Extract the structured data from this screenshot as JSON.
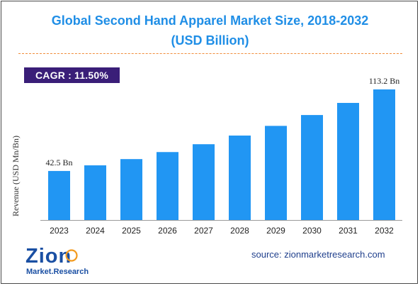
{
  "title": {
    "line1": "Global Second Hand Apparel Market Size, 2018-2032",
    "line2": "(USD Billion)"
  },
  "cagr_label": "CAGR : 11.50%",
  "source": "source: zionmarketresearch.com",
  "logo": {
    "word": "Zion",
    "sub": "Market.Research"
  },
  "colors": {
    "title": "#1f8ee6",
    "bar": "#2196f3",
    "cagr_bg": "#3a1e78",
    "divider": "#f08d3a",
    "logo_blue": "#1a4fa3",
    "logo_orange": "#f39a1e"
  },
  "chart_data": {
    "type": "bar",
    "title": "Global Second Hand Apparel Market Size, 2018-2032 (USD Billion)",
    "xlabel": "",
    "ylabel": "Revenue (USD Mn/Bn)",
    "categories": [
      "2023",
      "2024",
      "2025",
      "2026",
      "2027",
      "2028",
      "2029",
      "2030",
      "2031",
      "2032"
    ],
    "values": [
      42.5,
      47.4,
      52.8,
      58.9,
      65.7,
      73.2,
      81.6,
      91.0,
      101.5,
      113.2
    ],
    "data_labels": [
      {
        "index": 0,
        "text": "42.5 Bn"
      },
      {
        "index": 9,
        "text": "113.2 Bn"
      }
    ],
    "ylim": [
      0,
      113.2
    ],
    "grid": false,
    "legend": "none"
  }
}
